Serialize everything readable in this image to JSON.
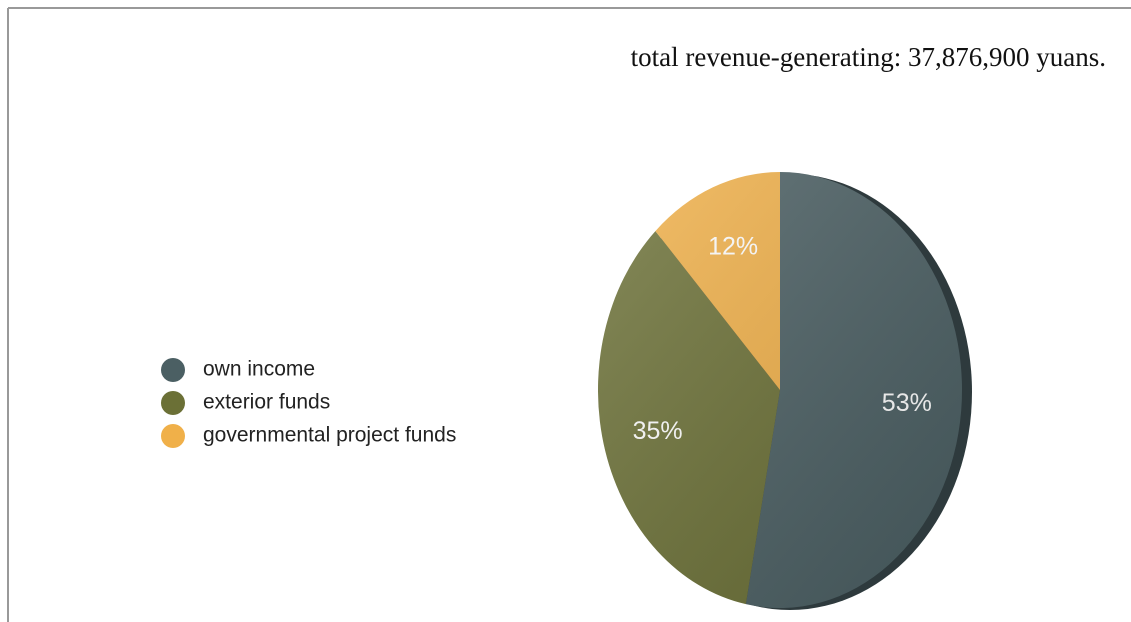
{
  "chart_data": {
    "type": "pie",
    "title": "total revenue-generating: 37,876,900 yuans.",
    "categories": [
      "own income",
      "exterior funds",
      "governmental project funds"
    ],
    "values": [
      53,
      35,
      12
    ],
    "value_labels": [
      "53%",
      "35%",
      "12%"
    ],
    "colors": [
      "#4b5f63",
      "#6b7036",
      "#f0b049"
    ],
    "legend": "left"
  }
}
